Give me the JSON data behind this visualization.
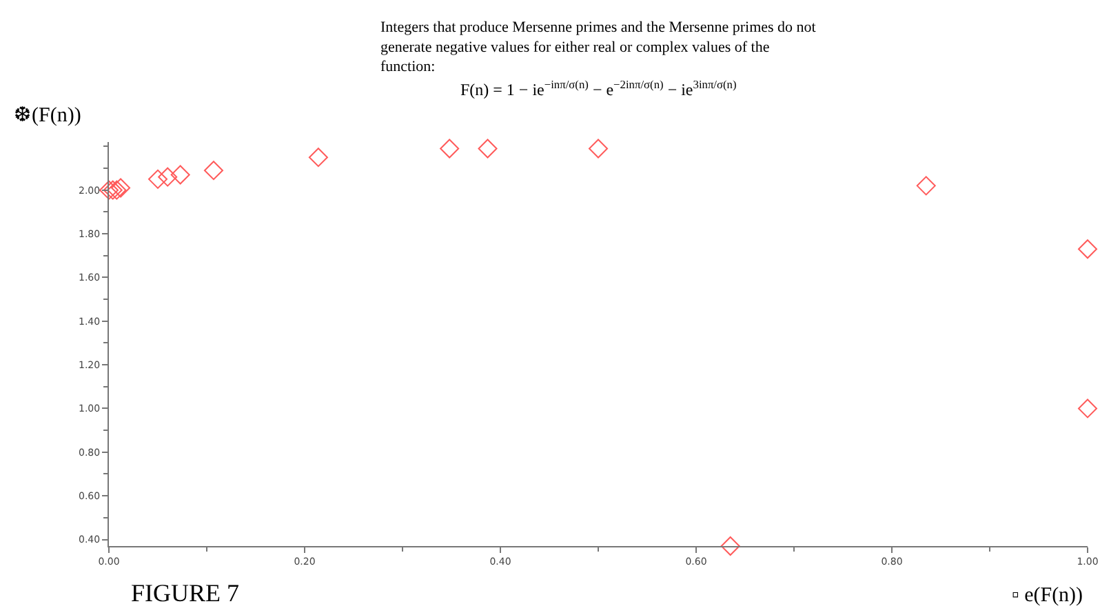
{
  "chart_data": {
    "type": "scatter",
    "title": "Integers that produce Mersenne primes and the Mersenne primes do not generate negative values for either real or complex values of the function:",
    "subtitle": "F(n) = 1 − ie$^{−inπ/σ(n)}$ − e$^{−2inπ/σ(n)}$ − ie$^{3inπ/σ(n)}$",
    "xlabel": "▫ e(F(n))",
    "ylabel": "❆(F(n))",
    "annotations": [
      "FIGURE 7"
    ],
    "x": [
      0.0,
      0.004,
      0.008,
      0.012,
      0.05,
      0.06,
      0.073,
      0.107,
      0.214,
      0.348,
      0.387,
      0.5,
      0.835,
      1.0,
      1.0,
      0.635
    ],
    "series": [
      {
        "color": "#ff5a5a",
        "values": [
          2.0,
          2.0,
          2.0,
          2.01,
          2.05,
          2.06,
          2.07,
          2.09,
          2.15,
          2.19,
          2.19,
          2.19,
          2.02,
          1.73,
          1.0,
          0.37
        ]
      }
    ],
    "marker": "diamond",
    "grid": false,
    "xlim": [
      0,
      1
    ],
    "xticks": [
      {
        "value": 0,
        "label": "0.00"
      },
      {
        "value": 0.2,
        "label": "0.20"
      },
      {
        "value": 0.4,
        "label": "0.40"
      },
      {
        "value": 0.6,
        "label": "0.60"
      },
      {
        "value": 0.8,
        "label": "0.80"
      },
      {
        "value": 1,
        "label": "1.00"
      }
    ],
    "ylim": [
      0.37,
      2.22
    ],
    "yticks": [
      {
        "value": 0.4,
        "label": "0.40"
      },
      {
        "value": 0.6,
        "label": "0.60"
      },
      {
        "value": 0.8,
        "label": "0.80"
      },
      {
        "value": 1,
        "label": "1.00"
      },
      {
        "value": 1.2,
        "label": "1.20"
      },
      {
        "value": 1.4,
        "label": "1.40"
      },
      {
        "value": 1.6,
        "label": "1.60"
      },
      {
        "value": 1.8,
        "label": "1.80"
      },
      {
        "value": 2,
        "label": "2.00"
      }
    ]
  }
}
